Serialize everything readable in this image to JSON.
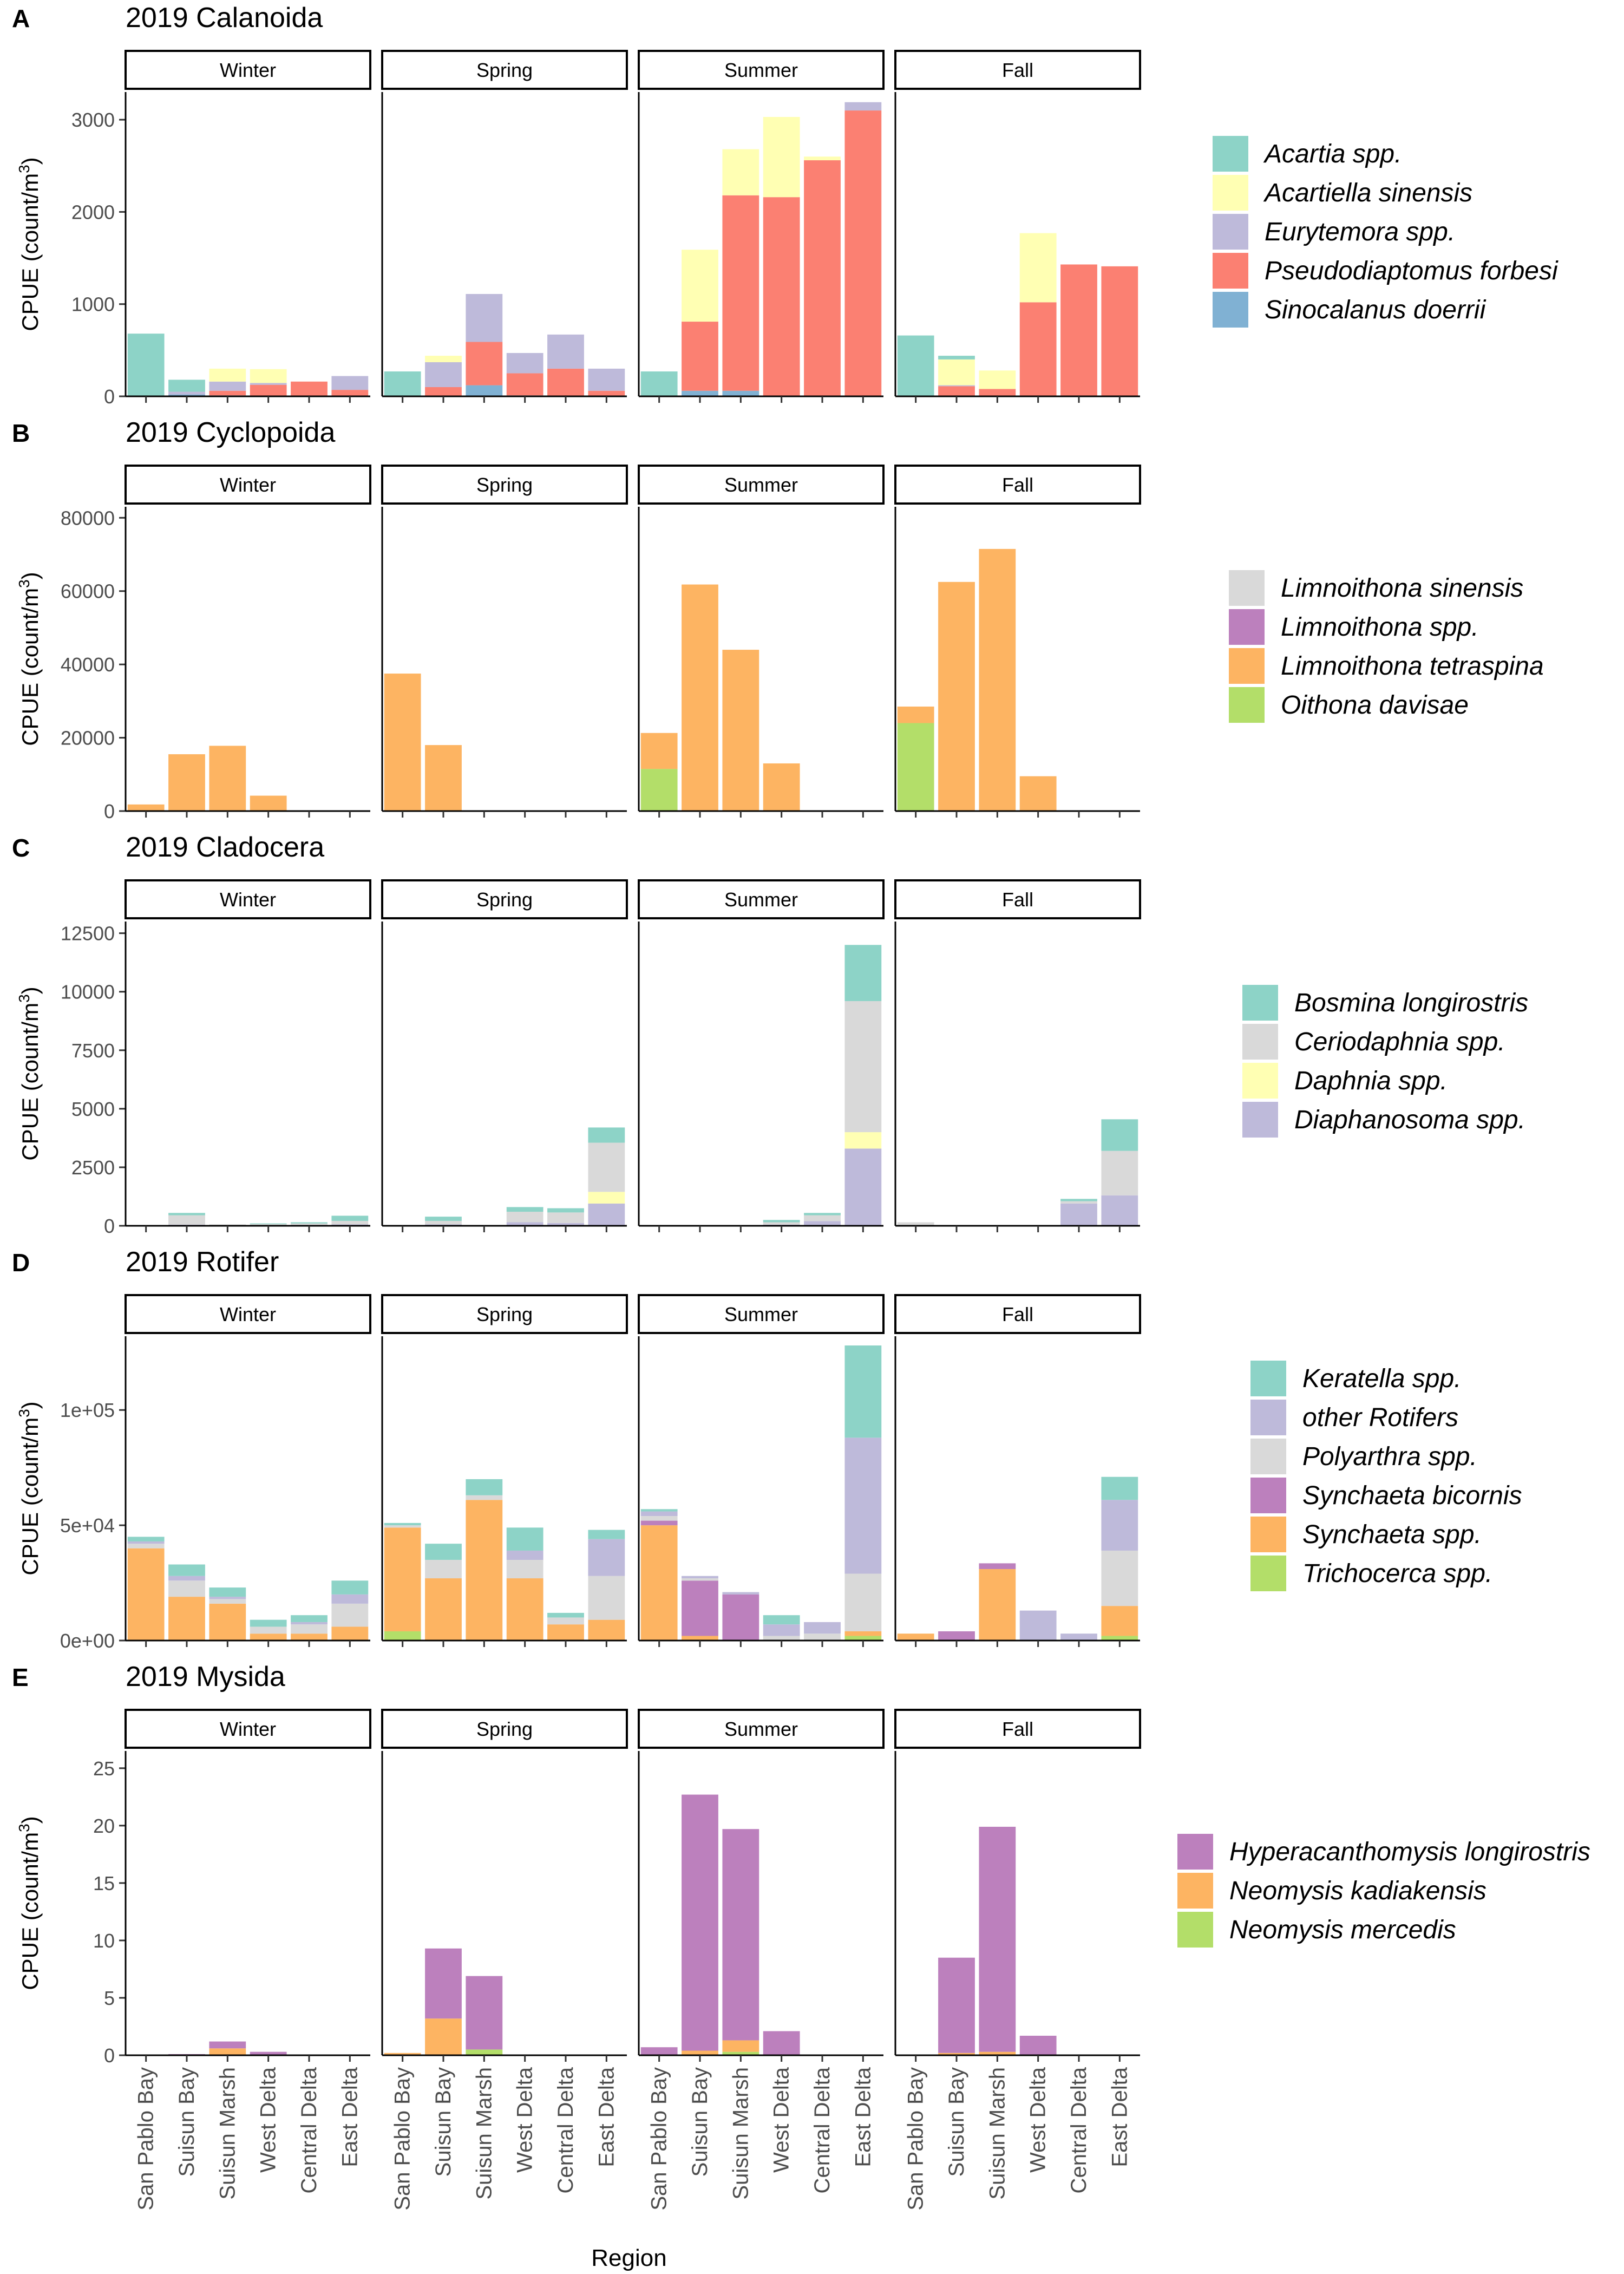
{
  "x_axis_title": "Region",
  "y_axis_title": "CPUE (count/m³)",
  "facets": [
    "Winter",
    "Spring",
    "Summer",
    "Fall"
  ],
  "regions": [
    "San Pablo Bay",
    "Suisun Bay",
    "Suisun Marsh",
    "West Delta",
    "Central Delta",
    "East Delta"
  ],
  "chart_data": [
    {
      "type": "bar",
      "stacked": true,
      "panel_letter": "A",
      "title": "2019 Calanoida",
      "ylabel": "CPUE (count/m³)",
      "xlabel": "Region",
      "ylim": [
        0,
        3300
      ],
      "yticks": [
        0,
        1000,
        2000,
        3000
      ],
      "ytick_labels": [
        "0",
        "1000",
        "2000",
        "3000"
      ],
      "legend_position": "right",
      "series": [
        {
          "name": "Sinocalanus doerrii",
          "color": "#80B1D3",
          "values": {
            "Winter": [
              0,
              20,
              10,
              5,
              0,
              0
            ],
            "Spring": [
              0,
              0,
              120,
              10,
              0,
              0
            ],
            "Summer": [
              0,
              60,
              60,
              0,
              0,
              0
            ],
            "Fall": [
              0,
              0,
              0,
              0,
              0,
              0
            ]
          }
        },
        {
          "name": "Pseudodiaptomus forbesi",
          "color": "#FB8072",
          "values": {
            "Winter": [
              0,
              0,
              50,
              120,
              160,
              70
            ],
            "Spring": [
              0,
              100,
              470,
              240,
              300,
              60
            ],
            "Summer": [
              0,
              750,
              2120,
              2160,
              2560,
              3100
            ],
            "Fall": [
              0,
              110,
              80,
              1020,
              1430,
              1410
            ]
          }
        },
        {
          "name": "Eurytemora spp.",
          "color": "#BEBADA",
          "values": {
            "Winter": [
              0,
              30,
              100,
              20,
              0,
              150
            ],
            "Spring": [
              0,
              270,
              520,
              220,
              370,
              240
            ],
            "Summer": [
              0,
              0,
              0,
              0,
              0,
              90
            ],
            "Fall": [
              0,
              10,
              0,
              0,
              0,
              0
            ]
          }
        },
        {
          "name": "Acartiella sinensis",
          "color": "#FFFFB3",
          "values": {
            "Winter": [
              0,
              0,
              140,
              150,
              0,
              0
            ],
            "Spring": [
              0,
              70,
              0,
              0,
              0,
              0
            ],
            "Summer": [
              0,
              780,
              500,
              870,
              40,
              0
            ],
            "Fall": [
              0,
              280,
              200,
              750,
              0,
              0
            ]
          }
        },
        {
          "name": "Acartia spp.",
          "color": "#8DD3C7",
          "values": {
            "Winter": [
              680,
              130,
              0,
              0,
              0,
              0
            ],
            "Spring": [
              270,
              0,
              0,
              0,
              0,
              0
            ],
            "Summer": [
              270,
              0,
              0,
              0,
              0,
              0
            ],
            "Fall": [
              660,
              40,
              0,
              0,
              0,
              0
            ]
          }
        }
      ]
    },
    {
      "type": "bar",
      "stacked": true,
      "panel_letter": "B",
      "title": "2019 Cyclopoida",
      "ylabel": "CPUE (count/m³)",
      "xlabel": "Region",
      "ylim": [
        0,
        83000
      ],
      "yticks": [
        0,
        20000,
        40000,
        60000,
        80000
      ],
      "ytick_labels": [
        "0",
        "20000",
        "40000",
        "60000",
        "80000"
      ],
      "legend_position": "right",
      "series": [
        {
          "name": "Oithona davisae",
          "color": "#B3DE69",
          "values": {
            "Winter": [
              0,
              0,
              0,
              0,
              0,
              0
            ],
            "Spring": [
              0,
              0,
              0,
              0,
              0,
              0
            ],
            "Summer": [
              11500,
              0,
              0,
              0,
              0,
              0
            ],
            "Fall": [
              24000,
              0,
              0,
              0,
              0,
              0
            ]
          }
        },
        {
          "name": "Limnoithona tetraspina",
          "color": "#FDB462",
          "values": {
            "Winter": [
              1800,
              15500,
              17800,
              4200,
              0,
              0
            ],
            "Spring": [
              37500,
              18000,
              0,
              0,
              0,
              0
            ],
            "Summer": [
              9800,
              61800,
              44000,
              13000,
              0,
              0
            ],
            "Fall": [
              4500,
              62500,
              71500,
              9500,
              0,
              0
            ]
          }
        },
        {
          "name": "Limnoithona spp.",
          "color": "#BC80BD",
          "values": {
            "Winter": [
              0,
              0,
              0,
              0,
              0,
              0
            ],
            "Spring": [
              0,
              0,
              0,
              0,
              0,
              0
            ],
            "Summer": [
              0,
              0,
              0,
              0,
              0,
              0
            ],
            "Fall": [
              0,
              0,
              0,
              0,
              0,
              0
            ]
          }
        },
        {
          "name": "Limnoithona sinensis",
          "color": "#D9D9D9",
          "values": {
            "Winter": [
              0,
              0,
              0,
              0,
              0,
              0
            ],
            "Spring": [
              0,
              0,
              0,
              0,
              0,
              0
            ],
            "Summer": [
              0,
              0,
              0,
              0,
              0,
              0
            ],
            "Fall": [
              0,
              0,
              0,
              0,
              0,
              0
            ]
          }
        }
      ]
    },
    {
      "type": "bar",
      "stacked": true,
      "panel_letter": "C",
      "title": "2019 Cladocera",
      "ylabel": "CPUE (count/m³)",
      "xlabel": "Region",
      "ylim": [
        0,
        13000
      ],
      "yticks": [
        0,
        2500,
        5000,
        7500,
        10000,
        12500
      ],
      "ytick_labels": [
        "0",
        "2500",
        "5000",
        "7500",
        "10000",
        "12500"
      ],
      "legend_position": "right",
      "series": [
        {
          "name": "Diaphanosoma spp.",
          "color": "#BEBADA",
          "values": {
            "Winter": [
              0,
              50,
              30,
              20,
              40,
              60
            ],
            "Spring": [
              0,
              60,
              0,
              150,
              120,
              950
            ],
            "Summer": [
              0,
              0,
              0,
              50,
              200,
              3300
            ],
            "Fall": [
              0,
              0,
              0,
              0,
              950,
              1300
            ]
          }
        },
        {
          "name": "Daphnia spp.",
          "color": "#FFFFB3",
          "values": {
            "Winter": [
              0,
              0,
              0,
              0,
              0,
              0
            ],
            "Spring": [
              0,
              0,
              0,
              0,
              0,
              500
            ],
            "Summer": [
              0,
              0,
              0,
              0,
              0,
              700
            ],
            "Fall": [
              0,
              0,
              0,
              0,
              0,
              0
            ]
          }
        },
        {
          "name": "Ceriodaphnia spp.",
          "color": "#D9D9D9",
          "values": {
            "Winter": [
              0,
              400,
              30,
              50,
              60,
              150
            ],
            "Spring": [
              0,
              150,
              30,
              450,
              450,
              2100
            ],
            "Summer": [
              0,
              0,
              0,
              100,
              250,
              5600
            ],
            "Fall": [
              150,
              0,
              0,
              0,
              100,
              1900
            ]
          }
        },
        {
          "name": "Bosmina longirostris",
          "color": "#8DD3C7",
          "values": {
            "Winter": [
              0,
              100,
              0,
              30,
              50,
              220
            ],
            "Spring": [
              0,
              180,
              0,
              200,
              180,
              650
            ],
            "Summer": [
              0,
              0,
              0,
              100,
              100,
              2400
            ],
            "Fall": [
              0,
              0,
              0,
              0,
              100,
              1350
            ]
          }
        }
      ]
    },
    {
      "type": "bar",
      "stacked": true,
      "panel_letter": "D",
      "title": "2019 Rotifer",
      "ylabel": "CPUE (count/m³)",
      "xlabel": "Region",
      "ylim": [
        0,
        132000
      ],
      "yticks": [
        0,
        50000,
        100000
      ],
      "ytick_labels": [
        "0e+00",
        "5e+04",
        "1e+05"
      ],
      "legend_position": "right",
      "series": [
        {
          "name": "Trichocerca spp.",
          "color": "#B3DE69",
          "values": {
            "Winter": [
              0,
              0,
              0,
              0,
              0,
              0
            ],
            "Spring": [
              4000,
              0,
              0,
              0,
              0,
              0
            ],
            "Summer": [
              0,
              0,
              0,
              0,
              0,
              2000
            ],
            "Fall": [
              0,
              0,
              0,
              0,
              0,
              2000
            ]
          }
        },
        {
          "name": "Synchaeta spp.",
          "color": "#FDB462",
          "values": {
            "Winter": [
              40000,
              19000,
              16000,
              3000,
              3000,
              6000
            ],
            "Spring": [
              45000,
              27000,
              61000,
              27000,
              7000,
              9000
            ],
            "Summer": [
              50000,
              2000,
              0,
              0,
              0,
              2000
            ],
            "Fall": [
              3000,
              0,
              31000,
              0,
              0,
              13000
            ]
          }
        },
        {
          "name": "Synchaeta bicornis",
          "color": "#BC80BD",
          "values": {
            "Winter": [
              0,
              0,
              0,
              0,
              0,
              0
            ],
            "Spring": [
              0,
              0,
              0,
              0,
              0,
              0
            ],
            "Summer": [
              2000,
              24000,
              20000,
              0,
              0,
              0
            ],
            "Fall": [
              0,
              4000,
              2500,
              0,
              0,
              0
            ]
          }
        },
        {
          "name": "Polyarthra spp.",
          "color": "#D9D9D9",
          "values": {
            "Winter": [
              2000,
              7000,
              2000,
              3000,
              4000,
              10000
            ],
            "Spring": [
              1000,
              8000,
              2000,
              8000,
              3000,
              19000
            ],
            "Summer": [
              2000,
              1000,
              0,
              2000,
              3000,
              25000
            ],
            "Fall": [
              0,
              0,
              0,
              0,
              0,
              24000
            ]
          }
        },
        {
          "name": "other Rotifers",
          "color": "#BEBADA",
          "values": {
            "Winter": [
              1000,
              2000,
              1000,
              0,
              1000,
              4000
            ],
            "Spring": [
              0,
              0,
              0,
              4000,
              0,
              16000
            ],
            "Summer": [
              2000,
              1000,
              1000,
              5000,
              5000,
              59000
            ],
            "Fall": [
              0,
              0,
              0,
              13000,
              3000,
              22000
            ]
          }
        },
        {
          "name": "Keratella spp.",
          "color": "#8DD3C7",
          "values": {
            "Winter": [
              2000,
              5000,
              4000,
              3000,
              3000,
              6000
            ],
            "Spring": [
              1000,
              7000,
              7000,
              10000,
              2000,
              4000
            ],
            "Summer": [
              1000,
              0,
              0,
              4000,
              0,
              40000
            ],
            "Fall": [
              0,
              0,
              0,
              0,
              0,
              10000
            ]
          }
        }
      ]
    },
    {
      "type": "bar",
      "stacked": true,
      "panel_letter": "E",
      "title": "2019 Mysida",
      "ylabel": "CPUE (count/m³)",
      "xlabel": "Region",
      "ylim": [
        0,
        26.5
      ],
      "yticks": [
        0,
        5,
        10,
        15,
        20,
        25
      ],
      "ytick_labels": [
        "0",
        "5",
        "10",
        "15",
        "20",
        "25"
      ],
      "legend_position": "right",
      "series": [
        {
          "name": "Neomysis mercedis",
          "color": "#B3DE69",
          "values": {
            "Winter": [
              0,
              0,
              0,
              0,
              0,
              0
            ],
            "Spring": [
              0,
              0,
              0.5,
              0,
              0,
              0
            ],
            "Summer": [
              0,
              0,
              0.3,
              0,
              0,
              0
            ],
            "Fall": [
              0,
              0,
              0,
              0,
              0,
              0
            ]
          }
        },
        {
          "name": "Neomysis kadiakensis",
          "color": "#FDB462",
          "values": {
            "Winter": [
              0,
              0,
              0.6,
              0,
              0,
              0
            ],
            "Spring": [
              0.2,
              3.2,
              0,
              0,
              0,
              0
            ],
            "Summer": [
              0,
              0.4,
              1.0,
              0,
              0,
              0
            ],
            "Fall": [
              0,
              0.2,
              0.3,
              0,
              0,
              0
            ]
          }
        },
        {
          "name": "Hyperacanthomysis longirostris",
          "color": "#BC80BD",
          "values": {
            "Winter": [
              0,
              0.1,
              0.6,
              0.3,
              0,
              0
            ],
            "Spring": [
              0,
              6.1,
              6.4,
              0,
              0,
              0
            ],
            "Summer": [
              0.7,
              22.3,
              18.4,
              2.1,
              0,
              0
            ],
            "Fall": [
              0,
              8.3,
              19.6,
              1.7,
              0,
              0
            ]
          }
        }
      ]
    }
  ]
}
